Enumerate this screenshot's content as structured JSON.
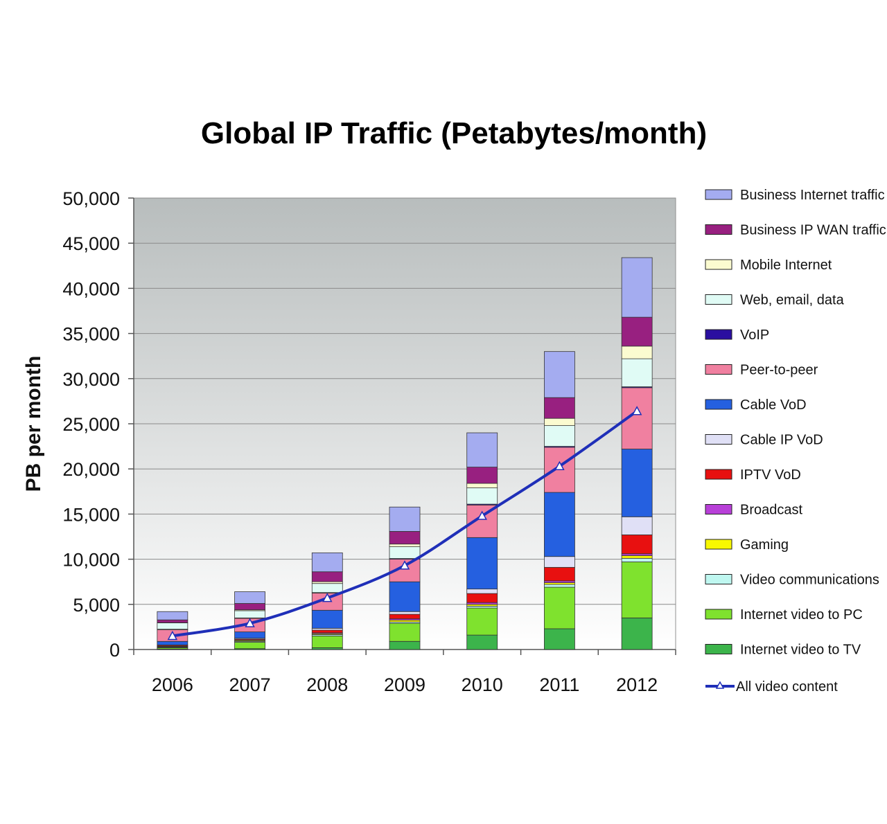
{
  "chart_data": {
    "type": "bar",
    "stacked": true,
    "title": "Global IP Traffic (Petabytes/month)",
    "xlabel": "",
    "ylabel": "PB per month",
    "ylim": [
      0,
      50000
    ],
    "yticks": [
      0,
      5000,
      10000,
      15000,
      20000,
      25000,
      30000,
      35000,
      40000,
      45000,
      50000
    ],
    "ytick_labels": [
      "0",
      "5,000",
      "10,000",
      "15,000",
      "20,000",
      "25,000",
      "30,000",
      "35,000",
      "40,000",
      "45,000",
      "50,000"
    ],
    "grid": true,
    "legend_position": "right",
    "categories": [
      "2006",
      "2007",
      "2008",
      "2009",
      "2010",
      "2011",
      "2012"
    ],
    "series": [
      {
        "name": "Internet video to TV",
        "color": "#3cb44b",
        "values": [
          50,
          100,
          200,
          900,
          1600,
          2300,
          3500
        ]
      },
      {
        "name": "Internet video to PC",
        "color": "#7fe22e",
        "values": [
          150,
          700,
          1300,
          2000,
          3000,
          4600,
          6200
        ]
      },
      {
        "name": "Video communications",
        "color": "#bff7f0",
        "values": [
          50,
          100,
          150,
          150,
          200,
          300,
          400
        ]
      },
      {
        "name": "Gaming",
        "color": "#f8f800",
        "values": [
          50,
          100,
          100,
          200,
          200,
          200,
          300
        ]
      },
      {
        "name": "Broadcast",
        "color": "#b840d8",
        "values": [
          50,
          50,
          100,
          150,
          200,
          200,
          200
        ]
      },
      {
        "name": "IPTV VoD",
        "color": "#e81010",
        "values": [
          100,
          100,
          300,
          500,
          1000,
          1500,
          2100
        ]
      },
      {
        "name": "Cable IP VoD",
        "color": "#e0e0f6",
        "values": [
          50,
          100,
          200,
          300,
          500,
          1200,
          2000
        ]
      },
      {
        "name": "Cable VoD",
        "color": "#2560e0",
        "values": [
          400,
          700,
          2000,
          3300,
          5700,
          7100,
          7500
        ]
      },
      {
        "name": "Peer-to-peer",
        "color": "#f080a0",
        "values": [
          1300,
          1500,
          1900,
          2500,
          3600,
          5000,
          6800
        ]
      },
      {
        "name": "VoIP",
        "color": "#2a0fa0",
        "values": [
          50,
          50,
          60,
          80,
          100,
          100,
          100
        ]
      },
      {
        "name": "Web, email, data",
        "color": "#e0fbf5",
        "values": [
          700,
          800,
          1000,
          1300,
          1800,
          2300,
          3100
        ]
      },
      {
        "name": "Mobile Internet",
        "color": "#fbfbd0",
        "values": [
          30,
          100,
          200,
          300,
          500,
          800,
          1400
        ]
      },
      {
        "name": "Business IP WAN traffic",
        "color": "#982080",
        "values": [
          300,
          700,
          1100,
          1400,
          1800,
          2300,
          3200
        ]
      },
      {
        "name": "Business Internet traffic",
        "color": "#a4acf0",
        "values": [
          920,
          1300,
          2100,
          2700,
          3800,
          5100,
          6600
        ]
      }
    ],
    "line_series": {
      "name": "All video content",
      "color": "#1f2fb8",
      "values": [
        1500,
        2900,
        5700,
        9300,
        14800,
        20300,
        26400
      ]
    },
    "legend_order": [
      "Business Internet traffic",
      "Business IP WAN traffic",
      "Mobile Internet",
      "Web, email, data",
      "VoIP",
      "Peer-to-peer",
      "Cable VoD",
      "Cable IP VoD",
      "IPTV VoD",
      "Broadcast",
      "Gaming",
      "Video communications",
      "Internet video to PC",
      "Internet video to TV",
      "All video content"
    ]
  }
}
